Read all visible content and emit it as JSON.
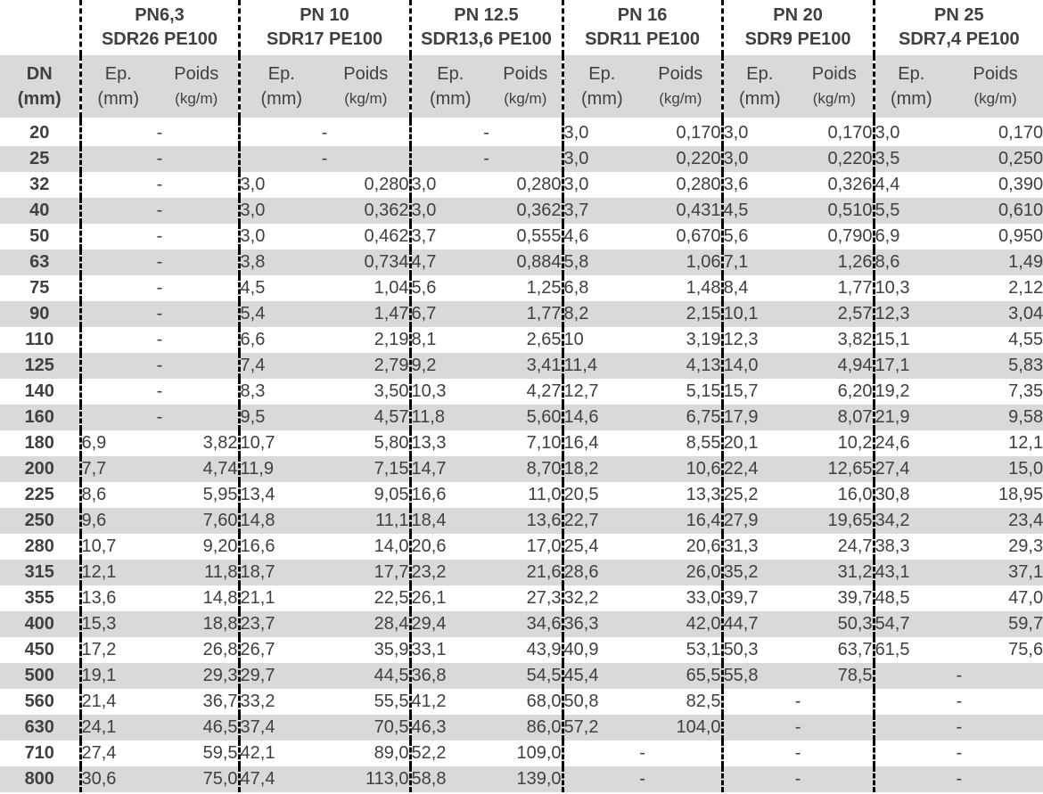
{
  "headers": {
    "groups": [
      {
        "line1": "PN6,3",
        "line2": "SDR26 PE100"
      },
      {
        "line1": "PN 10",
        "line2": "SDR17 PE100"
      },
      {
        "line1": "PN 12.5",
        "line2": "SDR13,6 PE100"
      },
      {
        "line1": "PN 16",
        "line2": "SDR11 PE100"
      },
      {
        "line1": "PN 20",
        "line2": "SDR9 PE100"
      },
      {
        "line1": "PN 25",
        "line2": "SDR7,4 PE100"
      }
    ],
    "dn_label": "DN",
    "dn_unit": "(mm)",
    "ep_label": "Ep.",
    "ep_unit": "(mm)",
    "poids_label": "Poids",
    "poids_unit": "(kg/m)"
  },
  "rows": [
    {
      "dn": "20",
      "c": [
        null,
        null,
        null,
        [
          "3,0",
          "0,170"
        ],
        [
          "3,0",
          "0,170"
        ],
        [
          "3,0",
          "0,170"
        ]
      ]
    },
    {
      "dn": "25",
      "c": [
        null,
        null,
        null,
        [
          "3,0",
          "0,220"
        ],
        [
          "3,0",
          "0,220"
        ],
        [
          "3,5",
          "0,250"
        ]
      ]
    },
    {
      "dn": "32",
      "c": [
        null,
        [
          "3,0",
          "0,280"
        ],
        [
          "3,0",
          "0,280"
        ],
        [
          "3,0",
          "0,280"
        ],
        [
          "3,6",
          "0,326"
        ],
        [
          "4,4",
          "0,390"
        ]
      ]
    },
    {
      "dn": "40",
      "c": [
        null,
        [
          "3,0",
          "0,362"
        ],
        [
          "3,0",
          "0,362"
        ],
        [
          "3,7",
          "0,431"
        ],
        [
          "4,5",
          "0,510"
        ],
        [
          "5,5",
          "0,610"
        ]
      ]
    },
    {
      "dn": "50",
      "c": [
        null,
        [
          "3,0",
          "0,462"
        ],
        [
          "3,7",
          "0,555"
        ],
        [
          "4,6",
          "0,670"
        ],
        [
          "5,6",
          "0,790"
        ],
        [
          "6,9",
          "0,950"
        ]
      ]
    },
    {
      "dn": "63",
      "c": [
        null,
        [
          "3,8",
          "0,734"
        ],
        [
          "4,7",
          "0,884"
        ],
        [
          "5,8",
          "1,06"
        ],
        [
          "7,1",
          "1,26"
        ],
        [
          "8,6",
          "1,49"
        ]
      ]
    },
    {
      "dn": "75",
      "c": [
        null,
        [
          "4,5",
          "1,04"
        ],
        [
          "5,6",
          "1,25"
        ],
        [
          "6,8",
          "1,48"
        ],
        [
          "8,4",
          "1,77"
        ],
        [
          "10,3",
          "2,12"
        ]
      ]
    },
    {
      "dn": "90",
      "c": [
        null,
        [
          "5,4",
          "1,47"
        ],
        [
          "6,7",
          "1,77"
        ],
        [
          "8,2",
          "2,15"
        ],
        [
          "10,1",
          "2,57"
        ],
        [
          "12,3",
          "3,04"
        ]
      ]
    },
    {
      "dn": "110",
      "c": [
        null,
        [
          "6,6",
          "2,19"
        ],
        [
          "8,1",
          "2,65"
        ],
        [
          "10",
          "3,19"
        ],
        [
          "12,3",
          "3,82"
        ],
        [
          "15,1",
          "4,55"
        ]
      ]
    },
    {
      "dn": "125",
      "c": [
        null,
        [
          "7,4",
          "2,79"
        ],
        [
          "9,2",
          "3,41"
        ],
        [
          "11,4",
          "4,13"
        ],
        [
          "14,0",
          "4,94"
        ],
        [
          "17,1",
          "5,83"
        ]
      ]
    },
    {
      "dn": "140",
      "c": [
        null,
        [
          "8,3",
          "3,50"
        ],
        [
          "10,3",
          "4,27"
        ],
        [
          "12,7",
          "5,15"
        ],
        [
          "15,7",
          "6,20"
        ],
        [
          "19,2",
          "7,35"
        ]
      ]
    },
    {
      "dn": "160",
      "c": [
        null,
        [
          "9,5",
          "4,57"
        ],
        [
          "11,8",
          "5,60"
        ],
        [
          "14,6",
          "6,75"
        ],
        [
          "17,9",
          "8,07"
        ],
        [
          "21,9",
          "9,58"
        ]
      ]
    },
    {
      "dn": "180",
      "c": [
        [
          "6,9",
          "3,82"
        ],
        [
          "10,7",
          "5,80"
        ],
        [
          "13,3",
          "7,10"
        ],
        [
          "16,4",
          "8,55"
        ],
        [
          "20,1",
          "10,2"
        ],
        [
          "24,6",
          "12,1"
        ]
      ]
    },
    {
      "dn": "200",
      "c": [
        [
          "7,7",
          "4,74"
        ],
        [
          "11,9",
          "7,15"
        ],
        [
          "14,7",
          "8,70"
        ],
        [
          "18,2",
          "10,6"
        ],
        [
          "22,4",
          "12,65"
        ],
        [
          "27,4",
          "15,0"
        ]
      ]
    },
    {
      "dn": "225",
      "c": [
        [
          "8,6",
          "5,95"
        ],
        [
          "13,4",
          "9,05"
        ],
        [
          "16,6",
          "11,0"
        ],
        [
          "20,5",
          "13,3"
        ],
        [
          "25,2",
          "16,0"
        ],
        [
          "30,8",
          "18,95"
        ]
      ]
    },
    {
      "dn": "250",
      "c": [
        [
          "9,6",
          "7,60"
        ],
        [
          "14,8",
          "11,1"
        ],
        [
          "18,4",
          "13,6"
        ],
        [
          "22,7",
          "16,4"
        ],
        [
          "27,9",
          "19,65"
        ],
        [
          "34,2",
          "23,4"
        ]
      ]
    },
    {
      "dn": "280",
      "c": [
        [
          "10,7",
          "9,20"
        ],
        [
          "16,6",
          "14,0"
        ],
        [
          "20,6",
          "17,0"
        ],
        [
          "25,4",
          "20,6"
        ],
        [
          "31,3",
          "24,7"
        ],
        [
          "38,3",
          "29,3"
        ]
      ]
    },
    {
      "dn": "315",
      "c": [
        [
          "12,1",
          "11,8"
        ],
        [
          "18,7",
          "17,7"
        ],
        [
          "23,2",
          "21,6"
        ],
        [
          "28,6",
          "26,0"
        ],
        [
          "35,2",
          "31,2"
        ],
        [
          "43,1",
          "37,1"
        ]
      ]
    },
    {
      "dn": "355",
      "c": [
        [
          "13,6",
          "14,8"
        ],
        [
          "21,1",
          "22,5"
        ],
        [
          "26,1",
          "27,3"
        ],
        [
          "32,2",
          "33,0"
        ],
        [
          "39,7",
          "39,7"
        ],
        [
          "48,5",
          "47,0"
        ]
      ]
    },
    {
      "dn": "400",
      "c": [
        [
          "15,3",
          "18,8"
        ],
        [
          "23,7",
          "28,4"
        ],
        [
          "29,4",
          "34,6"
        ],
        [
          "36,3",
          "42,0"
        ],
        [
          "44,7",
          "50,3"
        ],
        [
          "54,7",
          "59,7"
        ]
      ]
    },
    {
      "dn": "450",
      "c": [
        [
          "17,2",
          "26,8"
        ],
        [
          "26,7",
          "35,9"
        ],
        [
          "33,1",
          "43,9"
        ],
        [
          "40,9",
          "53,1"
        ],
        [
          "50,3",
          "63,7"
        ],
        [
          "61,5",
          "75,6"
        ]
      ]
    },
    {
      "dn": "500",
      "c": [
        [
          "19,1",
          "29,3"
        ],
        [
          "29,7",
          "44,5"
        ],
        [
          "36,8",
          "54,5"
        ],
        [
          "45,4",
          "65,5"
        ],
        [
          "55,8",
          "78,5"
        ],
        null
      ]
    },
    {
      "dn": "560",
      "c": [
        [
          "21,4",
          "36,7"
        ],
        [
          "33,2",
          "55,5"
        ],
        [
          "41,2",
          "68,0"
        ],
        [
          "50,8",
          "82,5"
        ],
        null,
        null
      ]
    },
    {
      "dn": "630",
      "c": [
        [
          "24,1",
          "46,5"
        ],
        [
          "37,4",
          "70,5"
        ],
        [
          "46,3",
          "86,0"
        ],
        [
          "57,2",
          "104,0"
        ],
        null,
        null
      ]
    },
    {
      "dn": "710",
      "c": [
        [
          "27,4",
          "59,5"
        ],
        [
          "42,1",
          "89,0"
        ],
        [
          "52,2",
          "109,0"
        ],
        null,
        null,
        null
      ]
    },
    {
      "dn": "800",
      "c": [
        [
          "30,6",
          "75,0"
        ],
        [
          "47,4",
          "113,0"
        ],
        [
          "58,8",
          "139,0"
        ],
        null,
        null,
        null
      ]
    }
  ],
  "empty_marker": "-"
}
